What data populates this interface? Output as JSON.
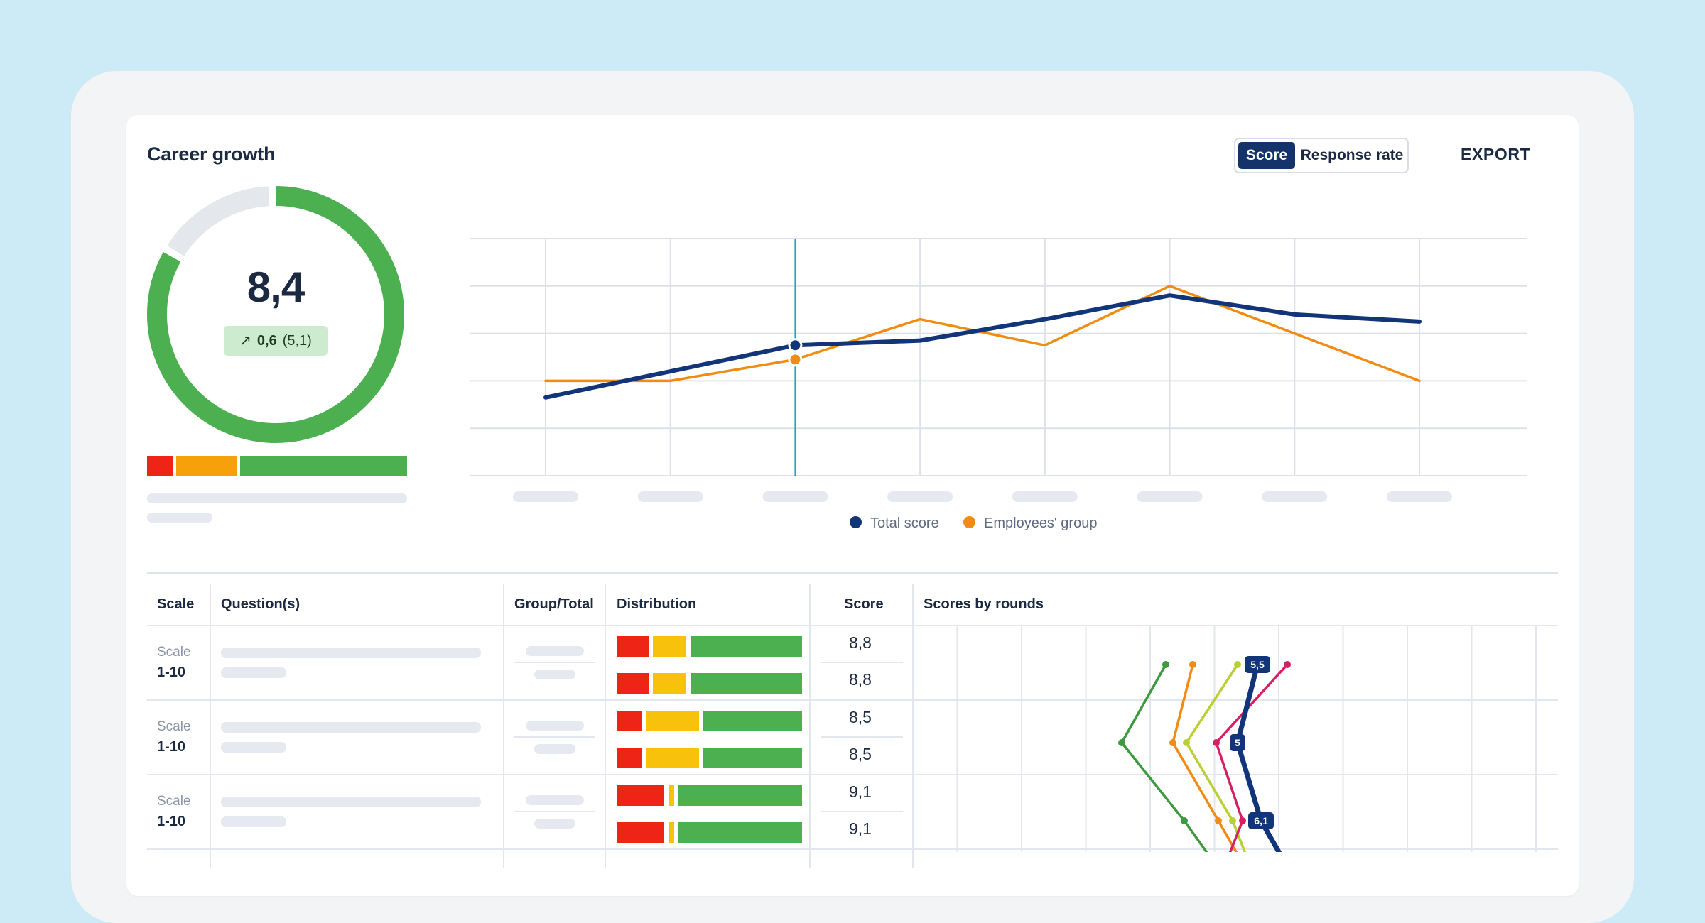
{
  "card": {
    "title": "Career growth",
    "toggle": {
      "score_label": "Score",
      "response_rate_label": "Response rate",
      "active": "Score"
    },
    "export_label": "EXPORT"
  },
  "summary": {
    "score": "8,4",
    "score_fraction": 0.84,
    "delta": "0,6",
    "previous": "(5,1)",
    "delta_icon": "arrow-up-right-icon",
    "distribution": [
      0.1,
      0.24,
      0.66
    ]
  },
  "chart_data": {
    "type": "line",
    "ylim": [
      0,
      5
    ],
    "categories": [
      "",
      "",
      "",
      "",
      "",
      "",
      "",
      ""
    ],
    "series": [
      {
        "name": "Total score",
        "color": "#12357a",
        "values": [
          1.65,
          2.2,
          2.75,
          2.85,
          3.3,
          3.8,
          3.4,
          3.25
        ]
      },
      {
        "name": "Employees' group",
        "color": "#f08b14",
        "values": [
          2.0,
          2.0,
          2.45,
          3.3,
          2.75,
          4.0,
          3.0,
          2.0
        ]
      }
    ],
    "highlight_index": 2,
    "grid": true
  },
  "table": {
    "headers": {
      "scale": "Scale",
      "questions": "Question(s)",
      "group_total": "Group/Total",
      "distribution": "Distribution",
      "score": "Score",
      "rounds": "Scores by rounds"
    },
    "rows": [
      {
        "scale_label": "Scale",
        "scale_range": "1-10",
        "score_group": "8,8",
        "score_total": "8,8",
        "dist_group": [
          0.18,
          0.19,
          0.63
        ],
        "dist_total": [
          0.18,
          0.19,
          0.63
        ]
      },
      {
        "scale_label": "Scale",
        "scale_range": "1-10",
        "score_group": "8,5",
        "score_total": "8,5",
        "dist_group": [
          0.14,
          0.3,
          0.56
        ],
        "dist_total": [
          0.14,
          0.3,
          0.56
        ]
      },
      {
        "scale_label": "Scale",
        "scale_range": "1-10",
        "score_group": "9,1",
        "score_total": "9,1",
        "dist_group": [
          0.27,
          0.03,
          0.7
        ],
        "dist_total": [
          0.27,
          0.03,
          0.7
        ]
      }
    ],
    "rounds_badges": [
      "5,5",
      "5",
      "6,1"
    ]
  },
  "colors": {
    "navy": "#12357a",
    "orange": "#f08b14",
    "green": "#4caf50",
    "red": "#ee2417",
    "amber": "#f8c10b",
    "olive": "#3d9a3e",
    "lime": "#b9cf33",
    "magenta": "#d81f63",
    "cursor": "#1aa4c4"
  }
}
